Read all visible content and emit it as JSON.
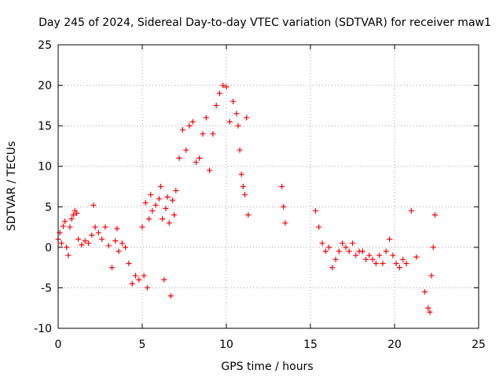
{
  "chart_data": {
    "type": "scatter",
    "title": "Day 245 of 2024, Sidereal Day-to-day VTEC variation (SDTVAR) for receiver maw1",
    "xlabel": "GPS time / hours",
    "ylabel": "SDTVAR / TECUs",
    "xlim": [
      0,
      25
    ],
    "ylim": [
      -10,
      25
    ],
    "xticks": [
      0,
      5,
      10,
      15,
      20,
      25
    ],
    "yticks": [
      -10,
      -5,
      0,
      5,
      10,
      15,
      20,
      25
    ],
    "xtick_labels": [
      "0",
      "5",
      "10",
      "15",
      "20",
      "25"
    ],
    "ytick_labels": [
      "-10",
      "-5",
      "0",
      "5",
      "10",
      "15",
      "20",
      "25"
    ],
    "grid": true,
    "marker": "+",
    "color": "#ff0000",
    "series": [
      {
        "name": "maw1",
        "x": [
          0.0,
          0.1,
          0.2,
          0.3,
          0.4,
          0.5,
          0.6,
          0.7,
          0.8,
          0.9,
          1.0,
          1.1,
          1.2,
          1.4,
          1.6,
          1.8,
          2.0,
          2.1,
          2.2,
          2.4,
          2.6,
          2.8,
          3.0,
          3.2,
          3.4,
          3.5,
          3.6,
          3.8,
          4.0,
          4.2,
          4.4,
          4.6,
          4.8,
          5.0,
          5.1,
          5.2,
          5.3,
          5.4,
          5.5,
          5.6,
          5.8,
          6.0,
          6.1,
          6.2,
          6.3,
          6.4,
          6.5,
          6.6,
          6.7,
          6.8,
          6.9,
          7.0,
          7.2,
          7.4,
          7.6,
          7.8,
          8.0,
          8.2,
          8.4,
          8.6,
          8.8,
          9.0,
          9.2,
          9.4,
          9.6,
          9.8,
          10.0,
          10.2,
          10.4,
          10.6,
          10.7,
          10.8,
          10.9,
          11.0,
          11.1,
          11.2,
          11.3,
          13.3,
          13.4,
          13.5,
          15.3,
          15.5,
          15.7,
          15.9,
          16.1,
          16.3,
          16.5,
          16.7,
          16.9,
          17.1,
          17.3,
          17.5,
          17.7,
          17.9,
          18.1,
          18.3,
          18.5,
          18.7,
          18.9,
          19.1,
          19.3,
          19.5,
          19.7,
          19.9,
          20.1,
          20.3,
          20.5,
          20.7,
          21.0,
          21.3,
          21.8,
          22.0,
          22.1,
          22.2,
          22.3,
          22.4
        ],
        "y": [
          1.0,
          1.8,
          0.5,
          2.6,
          3.2,
          0.0,
          -1.0,
          2.5,
          3.5,
          4.0,
          4.5,
          4.2,
          1.0,
          0.3,
          0.8,
          0.5,
          1.5,
          5.2,
          2.5,
          1.8,
          1.0,
          2.5,
          0.2,
          -2.5,
          0.8,
          2.3,
          -0.5,
          0.5,
          0.0,
          -2.0,
          -4.5,
          -3.5,
          -4.0,
          2.5,
          -3.5,
          5.5,
          -5.0,
          3.5,
          6.5,
          4.5,
          5.2,
          6.0,
          7.5,
          3.5,
          -4.0,
          4.8,
          6.2,
          3.0,
          -6.0,
          5.8,
          4.0,
          7.0,
          11.0,
          14.5,
          12.0,
          15.0,
          15.5,
          10.5,
          11.0,
          14.0,
          16.0,
          9.5,
          14.0,
          17.5,
          19.0,
          20.0,
          19.8,
          15.5,
          18.0,
          16.5,
          15.0,
          12.0,
          9.0,
          7.5,
          6.5,
          16.0,
          4.0,
          7.5,
          5.0,
          3.0,
          4.5,
          2.5,
          0.5,
          -0.5,
          0.0,
          -2.5,
          -1.5,
          -0.5,
          0.5,
          0.0,
          -0.5,
          0.5,
          -1.0,
          -0.5,
          -0.5,
          -1.5,
          -1.0,
          -1.5,
          -2.0,
          -1.0,
          -2.0,
          -0.5,
          1.0,
          -1.0,
          -2.0,
          -2.5,
          -1.5,
          -2.0,
          4.5,
          -1.2,
          -5.5,
          -7.5,
          -8.0,
          -3.5,
          0.0,
          4.0
        ]
      }
    ]
  }
}
